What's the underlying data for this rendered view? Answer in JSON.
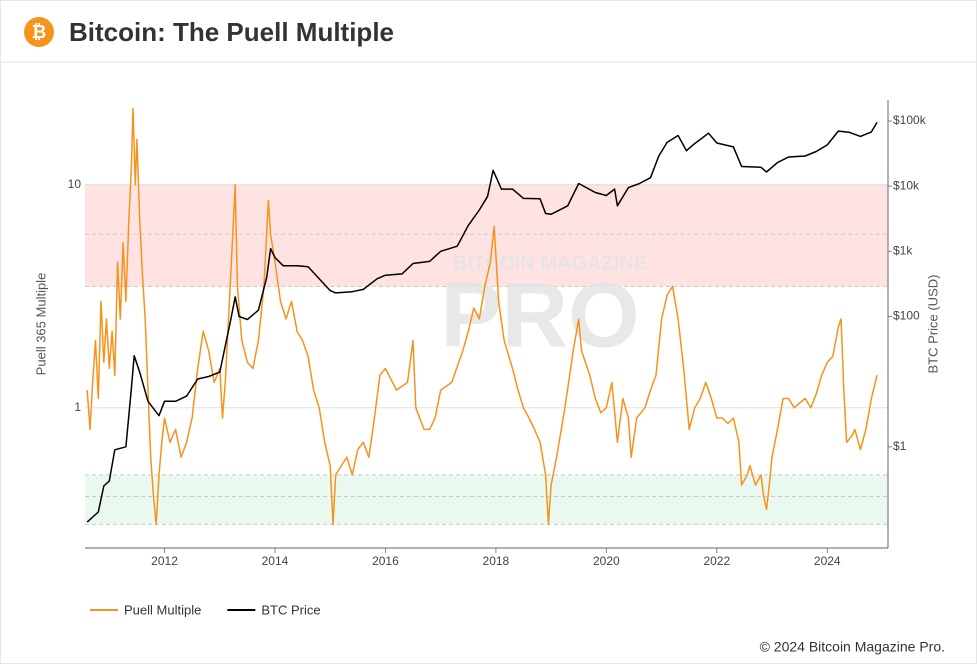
{
  "header": {
    "logo_symbol": "₿",
    "title": "Bitcoin: The Puell Multiple"
  },
  "chart_data": {
    "type": "line",
    "y_label": "Puell 365 Multiple",
    "y2_label": "BTC Price (USD)",
    "xlim": [
      2010.56,
      2025.1
    ],
    "xticks": [
      2012,
      2014,
      2016,
      2018,
      2020,
      2022,
      2024
    ],
    "ylim": [
      0.235,
      24
    ],
    "yticks": [
      1,
      10
    ],
    "log_y": true,
    "grid": true,
    "y2lim": [
      0.028,
      210000
    ],
    "log_y2": true,
    "y2ticks": [
      {
        "value": 1,
        "label": "$1"
      },
      {
        "value": 100,
        "label": "$100"
      },
      {
        "value": 1000,
        "label": "$1k"
      },
      {
        "value": 10000,
        "label": "$10k"
      },
      {
        "value": 100000,
        "label": "$100k"
      }
    ],
    "bands": [
      {
        "from": 3.5,
        "mid": 6,
        "to": 10,
        "color": "#ffe3e3"
      },
      {
        "from": 0.3,
        "mid": 0.4,
        "to": 0.5,
        "color": "#e9f9ef"
      }
    ],
    "watermark": {
      "top": "BITCOIN MAGAZINE",
      "main": "PRO"
    },
    "legend": "bottom-left",
    "series": [
      {
        "name": "Puell Multiple",
        "color": "#f7931a",
        "axis": "y",
        "x": [
          2010.6,
          2010.65,
          2010.7,
          2010.75,
          2010.8,
          2010.85,
          2010.9,
          2010.95,
          2011.0,
          2011.05,
          2011.1,
          2011.15,
          2011.2,
          2011.25,
          2011.3,
          2011.35,
          2011.4,
          2011.43,
          2011.47,
          2011.5,
          2011.55,
          2011.6,
          2011.65,
          2011.7,
          2011.75,
          2011.8,
          2011.85,
          2011.9,
          2011.95,
          2012.0,
          2012.1,
          2012.2,
          2012.3,
          2012.4,
          2012.5,
          2012.6,
          2012.7,
          2012.8,
          2012.9,
          2013.0,
          2013.05,
          2013.1,
          2013.2,
          2013.28,
          2013.32,
          2013.4,
          2013.5,
          2013.6,
          2013.7,
          2013.8,
          2013.88,
          2013.92,
          2014.0,
          2014.1,
          2014.2,
          2014.3,
          2014.4,
          2014.5,
          2014.6,
          2014.7,
          2014.8,
          2014.9,
          2015.0,
          2015.05,
          2015.1,
          2015.2,
          2015.3,
          2015.4,
          2015.5,
          2015.6,
          2015.7,
          2015.8,
          2015.9,
          2016.0,
          2016.2,
          2016.4,
          2016.5,
          2016.55,
          2016.7,
          2016.8,
          2016.9,
          2017.0,
          2017.2,
          2017.4,
          2017.5,
          2017.6,
          2017.7,
          2017.8,
          2017.9,
          2017.97,
          2018.05,
          2018.15,
          2018.3,
          2018.4,
          2018.5,
          2018.6,
          2018.7,
          2018.8,
          2018.9,
          2018.95,
          2019.0,
          2019.1,
          2019.25,
          2019.4,
          2019.5,
          2019.55,
          2019.7,
          2019.8,
          2019.9,
          2020.0,
          2020.1,
          2020.2,
          2020.3,
          2020.4,
          2020.45,
          2020.55,
          2020.7,
          2020.8,
          2020.9,
          2021.0,
          2021.1,
          2021.2,
          2021.3,
          2021.4,
          2021.5,
          2021.6,
          2021.7,
          2021.8,
          2021.9,
          2022.0,
          2022.1,
          2022.2,
          2022.3,
          2022.4,
          2022.45,
          2022.55,
          2022.6,
          2022.7,
          2022.8,
          2022.85,
          2022.9,
          2022.95,
          2023.0,
          2023.1,
          2023.2,
          2023.3,
          2023.4,
          2023.5,
          2023.6,
          2023.7,
          2023.8,
          2023.9,
          2024.0,
          2024.1,
          2024.2,
          2024.25,
          2024.3,
          2024.35,
          2024.45,
          2024.5,
          2024.6,
          2024.7,
          2024.8,
          2024.9
        ],
        "values": [
          1.2,
          0.8,
          1.3,
          2.0,
          1.1,
          3.0,
          1.6,
          2.5,
          1.5,
          2.2,
          1.4,
          4.5,
          2.5,
          5.5,
          3.0,
          6.5,
          12,
          22,
          10,
          16,
          7,
          4,
          2.5,
          1.2,
          0.6,
          0.4,
          0.3,
          0.5,
          0.7,
          0.9,
          0.7,
          0.8,
          0.6,
          0.7,
          0.9,
          1.5,
          2.2,
          1.8,
          1.3,
          1.5,
          0.9,
          1.3,
          4,
          10,
          3.5,
          2,
          1.6,
          1.5,
          2,
          3.5,
          8.5,
          6,
          4.5,
          3,
          2.5,
          3,
          2.2,
          2,
          1.7,
          1.2,
          1,
          0.7,
          0.55,
          0.3,
          0.5,
          0.55,
          0.6,
          0.5,
          0.65,
          0.7,
          0.6,
          0.9,
          1.4,
          1.5,
          1.2,
          1.3,
          2.0,
          1.0,
          0.8,
          0.8,
          0.9,
          1.2,
          1.3,
          1.8,
          2.2,
          2.8,
          2.5,
          3.5,
          4.5,
          6.5,
          3,
          2,
          1.5,
          1.2,
          1.0,
          0.9,
          0.8,
          0.7,
          0.5,
          0.3,
          0.45,
          0.6,
          1.0,
          1.8,
          2.5,
          1.8,
          1.4,
          1.1,
          0.95,
          1.0,
          1.3,
          0.7,
          1.1,
          0.9,
          0.6,
          0.9,
          1.0,
          1.2,
          1.4,
          2.5,
          3.2,
          3.5,
          2.5,
          1.5,
          0.8,
          1.0,
          1.1,
          1.3,
          1.1,
          0.9,
          0.9,
          0.85,
          0.9,
          0.7,
          0.45,
          0.5,
          0.55,
          0.45,
          0.5,
          0.4,
          0.35,
          0.45,
          0.6,
          0.8,
          1.1,
          1.1,
          1.0,
          1.05,
          1.1,
          1.0,
          1.15,
          1.4,
          1.6,
          1.7,
          2.3,
          2.5,
          1.2,
          0.7,
          0.75,
          0.8,
          0.65,
          0.8,
          1.1,
          1.4
        ]
      },
      {
        "name": "BTC Price",
        "color": "#000000",
        "axis": "y2",
        "x": [
          2010.6,
          2010.8,
          2010.9,
          2011.0,
          2011.1,
          2011.3,
          2011.4,
          2011.45,
          2011.55,
          2011.7,
          2011.9,
          2012.0,
          2012.2,
          2012.4,
          2012.6,
          2012.8,
          2013.0,
          2013.2,
          2013.28,
          2013.35,
          2013.5,
          2013.7,
          2013.85,
          2013.92,
          2014.0,
          2014.15,
          2014.4,
          2014.6,
          2014.8,
          2015.0,
          2015.1,
          2015.4,
          2015.6,
          2015.85,
          2016.0,
          2016.3,
          2016.5,
          2016.8,
          2017.0,
          2017.3,
          2017.5,
          2017.7,
          2017.85,
          2017.95,
          2018.1,
          2018.3,
          2018.5,
          2018.8,
          2018.9,
          2019.0,
          2019.3,
          2019.5,
          2019.8,
          2020.0,
          2020.15,
          2020.2,
          2020.4,
          2020.6,
          2020.8,
          2020.95,
          2021.1,
          2021.3,
          2021.45,
          2021.6,
          2021.85,
          2022.0,
          2022.3,
          2022.45,
          2022.8,
          2022.9,
          2023.1,
          2023.3,
          2023.6,
          2023.8,
          2024.0,
          2024.2,
          2024.4,
          2024.6,
          2024.8,
          2024.9
        ],
        "values": [
          0.07,
          0.1,
          0.25,
          0.3,
          0.9,
          1,
          8,
          25,
          14,
          5,
          3,
          5,
          5,
          6,
          11,
          12,
          14,
          90,
          200,
          100,
          90,
          125,
          400,
          1100,
          800,
          600,
          600,
          580,
          380,
          250,
          230,
          240,
          260,
          380,
          430,
          450,
          650,
          700,
          1000,
          1200,
          2500,
          4300,
          7000,
          17500,
          9000,
          9000,
          6500,
          6400,
          3800,
          3700,
          5000,
          11000,
          8000,
          7200,
          9000,
          5000,
          9500,
          11000,
          13500,
          29000,
          47000,
          60000,
          35000,
          45000,
          65000,
          46000,
          40000,
          20000,
          19500,
          16500,
          23000,
          28000,
          29000,
          34000,
          43000,
          70000,
          67000,
          58000,
          68000,
          95000
        ]
      }
    ]
  },
  "footer": {
    "copyright": "© 2024 Bitcoin Magazine Pro."
  }
}
